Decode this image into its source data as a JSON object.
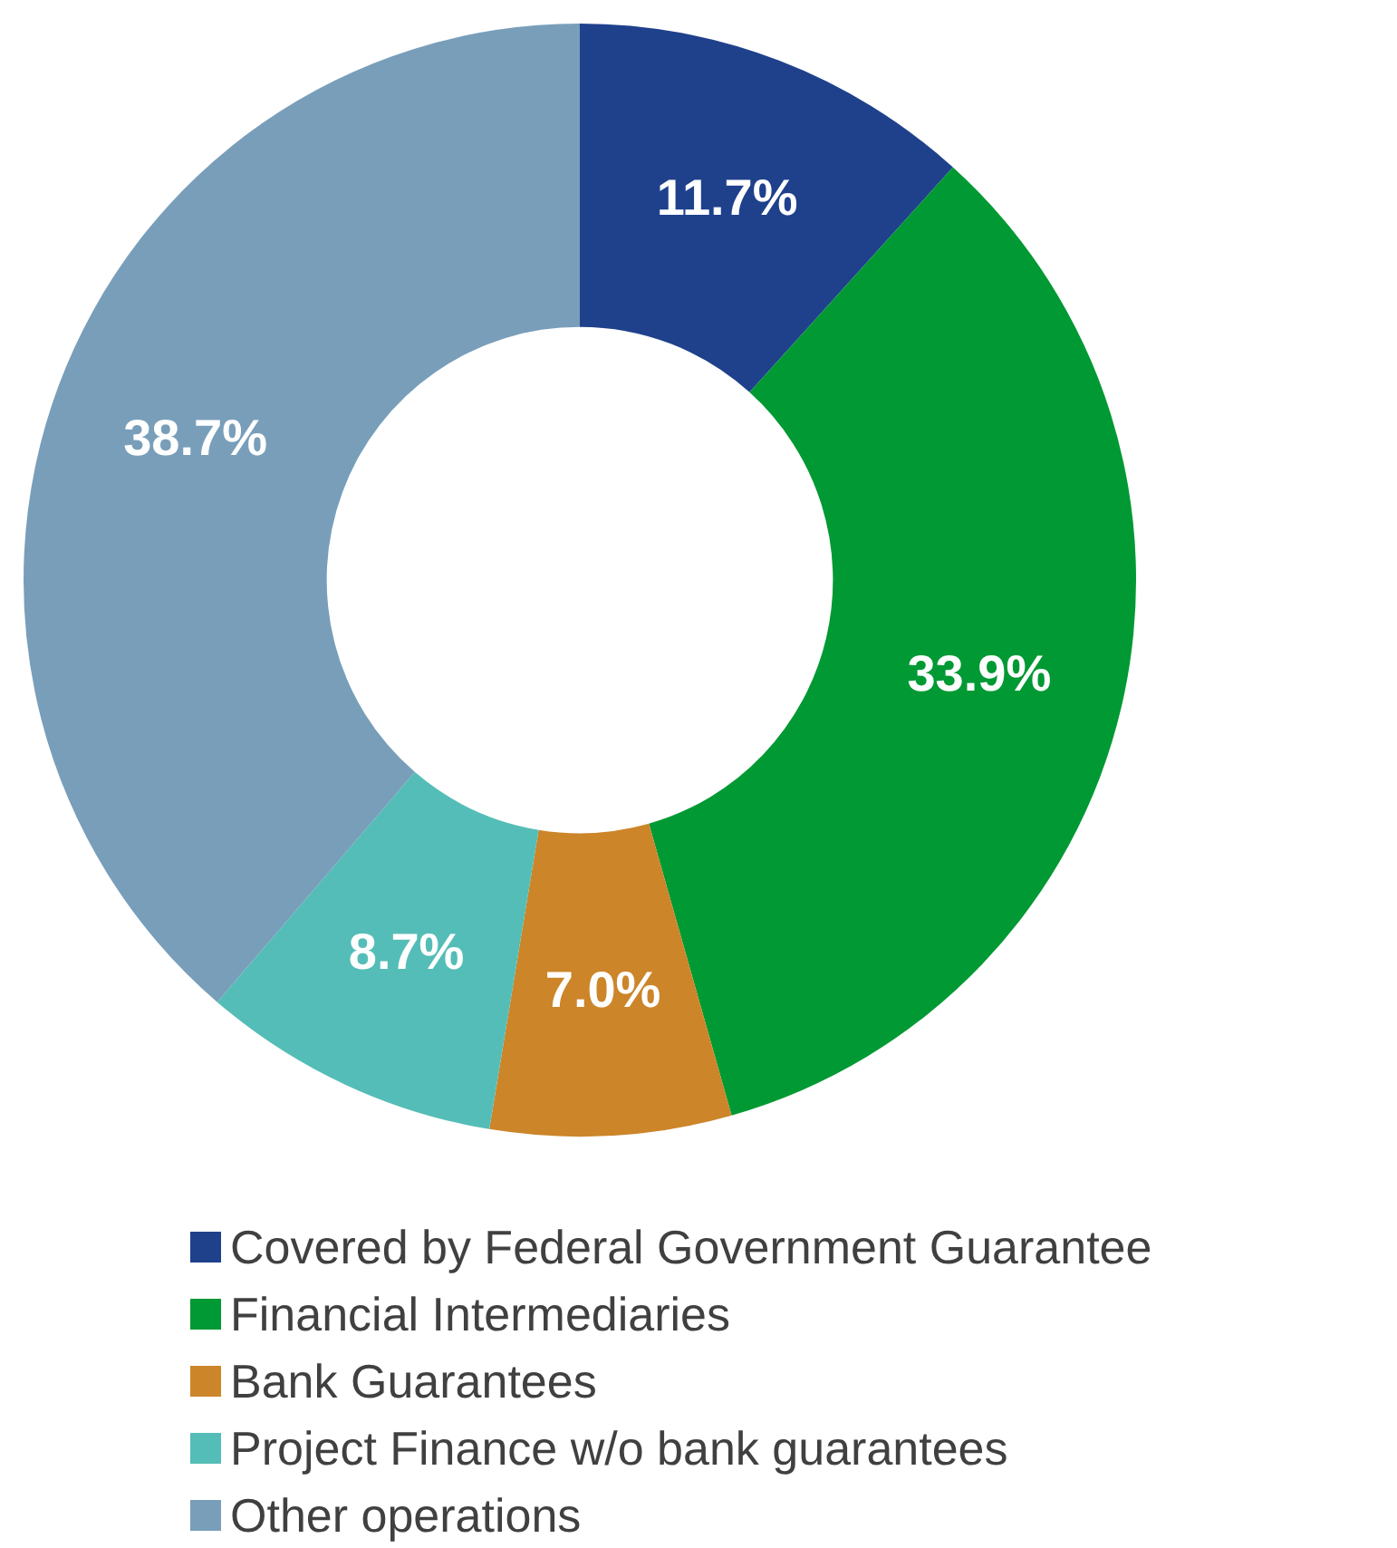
{
  "chart_data": {
    "type": "donut",
    "categories": [
      "Covered by Federal Government Guarantee",
      "Financial Intermediaries",
      "Bank Guarantees",
      "Project Finance w/o bank guarantees",
      "Other operations"
    ],
    "values": [
      11.7,
      33.9,
      7.0,
      8.7,
      38.7
    ],
    "value_labels": [
      "11.7%",
      "33.9%",
      "7.0%",
      "8.7%",
      "38.7%"
    ],
    "colors": [
      "#1f418c",
      "#009933",
      "#cc8529",
      "#55bdb7",
      "#789eba"
    ],
    "legend": "bottom"
  }
}
